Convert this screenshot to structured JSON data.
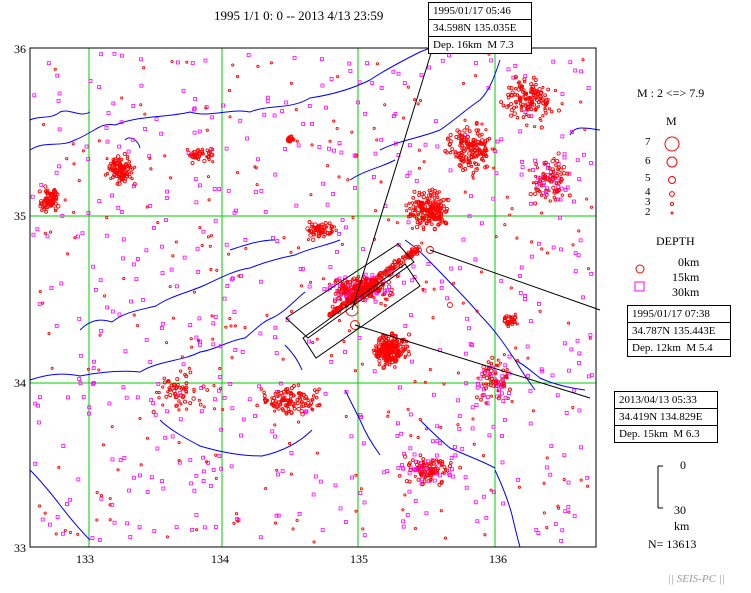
{
  "title": "1995 1/1 0: 0 -- 2013 4/13 23:59",
  "axes": {
    "lat_ticks": [
      "36",
      "35",
      "34",
      "33"
    ],
    "lon_ticks": [
      "133",
      "134",
      "135",
      "136"
    ]
  },
  "events": [
    {
      "time": "1995/01/17 05:46",
      "coords": "34.598N 135.035E",
      "depth": "Dep. 16km",
      "mag": "M 7.3"
    },
    {
      "time": "1995/01/17 07:38",
      "coords": "34.787N 135.443E",
      "depth": "Dep. 12km",
      "mag": "M 5.4"
    },
    {
      "time": "2013/04/13 05:33",
      "coords": "34.419N 134.829E",
      "depth": "Dep. 15km",
      "mag": "M 6.3"
    }
  ],
  "legend": {
    "mag_range": "M : 2 <=> 7.9",
    "mag_title": "M",
    "mag_levels": [
      "7",
      "6",
      "5",
      "4",
      "3",
      "2"
    ],
    "depth_title": "DEPTH",
    "depth_levels": [
      "0km",
      "15km",
      "30km"
    ],
    "scale_top": "0",
    "scale_bottom": "30",
    "scale_unit": "km",
    "count": "N= 13613"
  },
  "footer": "|| SEIS-PC ||",
  "colors": {
    "shallow": "#ff0000",
    "deep": "#ff00ff",
    "grid": "#00cc00",
    "coast": "#0000ff"
  }
}
